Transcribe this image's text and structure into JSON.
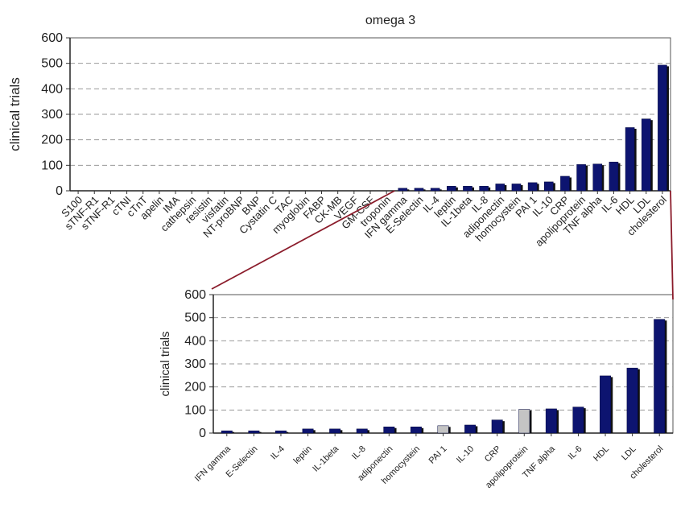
{
  "chart_data": [
    {
      "type": "bar",
      "title": "omega 3",
      "xlabel": "",
      "ylabel": "clinical trials",
      "ylim": [
        0,
        600
      ],
      "yticks": [
        0,
        100,
        200,
        300,
        400,
        500,
        600
      ],
      "grid": "horizontal dashed",
      "legend": "none",
      "bar_color": "#0d1470",
      "categories": [
        "S100",
        "sTNF-R1",
        "sTNF-R1",
        "cTNI",
        "cTnT",
        "apelin",
        "IMA",
        "cathepsin",
        "resistin",
        "visfatin",
        "NT-proBNP",
        "BNP",
        "Cystatin C",
        "TAC",
        "myoglobin",
        "FABP",
        "CK-MB",
        "VEGF",
        "GM-CSF",
        "troponin",
        "IFN gamma",
        "E-Selectin",
        "IL-4",
        "leptin",
        "IL-1beta",
        "IL-8",
        "adiponectin",
        "homocystein",
        "PAI 1",
        "IL-10",
        "CRP",
        "apolipoprotein",
        "TNF alpha",
        "IL-6",
        "HDL",
        "LDL",
        "cholesterol"
      ],
      "values": [
        0,
        0,
        0,
        0,
        0,
        0,
        0,
        0,
        0,
        0,
        0,
        0,
        0,
        0,
        0,
        0,
        0,
        0,
        0,
        0,
        10,
        10,
        10,
        18,
        18,
        18,
        27,
        27,
        32,
        35,
        57,
        103,
        105,
        113,
        248,
        282,
        493
      ]
    },
    {
      "type": "bar",
      "title": "",
      "xlabel": "",
      "ylabel": "clinical trials",
      "ylim": [
        0,
        600
      ],
      "yticks": [
        0,
        100,
        200,
        300,
        400,
        500,
        600
      ],
      "grid": "horizontal dashed",
      "legend": "none",
      "bar_color": "#0d1470",
      "highlight_color": "#c4c4c4",
      "highlighted": [
        "PAI 1",
        "apolipoprotein"
      ],
      "categories": [
        "IFN gamma",
        "E-Selectin",
        "IL-4",
        "leptin",
        "IL-1beta",
        "IL-8",
        "adiponectin",
        "homocystein",
        "PAI 1",
        "IL-10",
        "CRP",
        "apolipoprotein",
        "TNF alpha",
        "IL-6",
        "HDL",
        "LDL",
        "cholesterol"
      ],
      "values": [
        10,
        10,
        10,
        18,
        18,
        18,
        27,
        27,
        32,
        35,
        57,
        103,
        105,
        113,
        248,
        282,
        493
      ]
    }
  ],
  "zoom_connector_color": "#8b1c2b"
}
